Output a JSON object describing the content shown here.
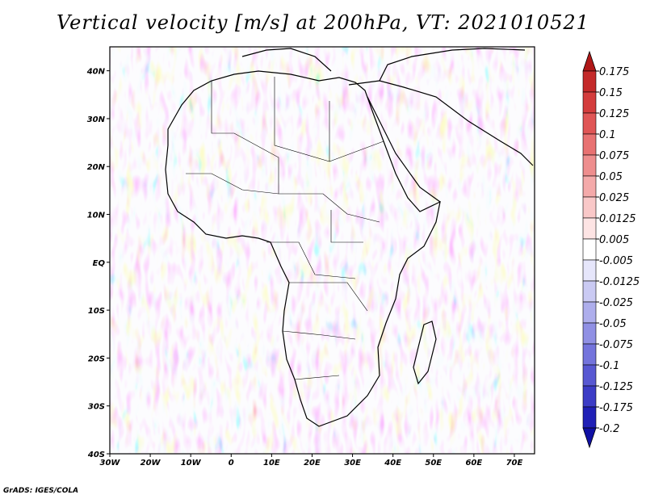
{
  "title": "Vertical velocity [m/s] at 200hPa, VT: 2021010521",
  "footer": "GrADS: IGES/COLA",
  "map": {
    "variable": "Vertical velocity",
    "units": "m/s",
    "level": "200hPa",
    "valid_time": "2021010521",
    "lon_range": [
      -30,
      75
    ],
    "lat_range": [
      -40,
      45
    ],
    "lat_ticks": [
      {
        "value": 40,
        "label": "40N"
      },
      {
        "value": 30,
        "label": "30N"
      },
      {
        "value": 20,
        "label": "20N"
      },
      {
        "value": 10,
        "label": "10N"
      },
      {
        "value": 0,
        "label": "EQ"
      },
      {
        "value": -10,
        "label": "10S"
      },
      {
        "value": -20,
        "label": "20S"
      },
      {
        "value": -30,
        "label": "30S"
      },
      {
        "value": -40,
        "label": "40S"
      }
    ],
    "lon_ticks": [
      {
        "value": -30,
        "label": "30W"
      },
      {
        "value": -20,
        "label": "20W"
      },
      {
        "value": -10,
        "label": "10W"
      },
      {
        "value": 0,
        "label": "0"
      },
      {
        "value": 10,
        "label": "10E"
      },
      {
        "value": 20,
        "label": "20E"
      },
      {
        "value": 30,
        "label": "30E"
      },
      {
        "value": 40,
        "label": "40E"
      },
      {
        "value": 50,
        "label": "50E"
      },
      {
        "value": 60,
        "label": "60E"
      },
      {
        "value": 70,
        "label": "70E"
      }
    ]
  },
  "colorbar": {
    "labels": [
      "0.175",
      "0.15",
      "0.125",
      "0.1",
      "0.075",
      "0.05",
      "0.025",
      "0.0125",
      "0.005",
      "-0.005",
      "-0.0125",
      "-0.025",
      "-0.05",
      "-0.075",
      "-0.1",
      "-0.125",
      "-0.175",
      "-0.2"
    ],
    "colors": [
      "#b01818",
      "#c42a2a",
      "#d43d3d",
      "#e05656",
      "#e87272",
      "#ee8e8e",
      "#f4aaaa",
      "#f9c8c8",
      "#fde4e4",
      "#ffffff",
      "#e6e6fb",
      "#cacaf3",
      "#aeaeec",
      "#9090e4",
      "#7474dc",
      "#5858d2",
      "#3c3cc6",
      "#2020b6",
      "#1010a4"
    ]
  }
}
